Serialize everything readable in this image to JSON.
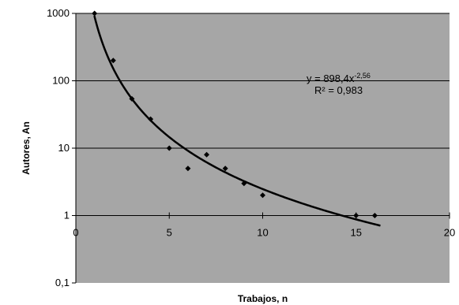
{
  "chart_data": {
    "type": "scatter",
    "title": "",
    "xlabel": "Trabajos, n",
    "ylabel": "Autores, An",
    "xlim": [
      0,
      20
    ],
    "ylim": [
      0.1,
      1000
    ],
    "yscale": "log",
    "x_ticks": [
      "0",
      "5",
      "10",
      "15",
      "20"
    ],
    "y_ticks": [
      "0,1",
      "1",
      "10",
      "100",
      "1000"
    ],
    "grid": "horizontal",
    "points": [
      {
        "x": 1,
        "y": 1000
      },
      {
        "x": 2,
        "y": 200
      },
      {
        "x": 3,
        "y": 54
      },
      {
        "x": 4,
        "y": 27
      },
      {
        "x": 5,
        "y": 10
      },
      {
        "x": 6,
        "y": 5
      },
      {
        "x": 7,
        "y": 8
      },
      {
        "x": 8,
        "y": 5
      },
      {
        "x": 9,
        "y": 3
      },
      {
        "x": 10,
        "y": 2
      },
      {
        "x": 15,
        "y": 1
      },
      {
        "x": 16,
        "y": 1
      }
    ],
    "trendline": {
      "type": "power",
      "coefficient": 898.4,
      "exponent": -2.56,
      "equation_prefix": "y = 898,4x",
      "equation_exponent": "-2,56",
      "r2_label": "R² = 0,983"
    },
    "colors": {
      "plot_background": "#a6a6a6",
      "marker": "#000000",
      "trendline": "#000000"
    }
  }
}
